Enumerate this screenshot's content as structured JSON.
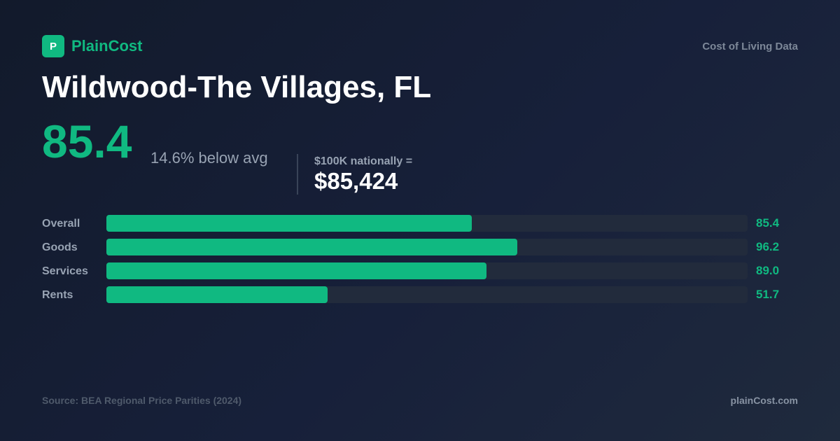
{
  "brand": {
    "logo_letter": "P",
    "name": "PlainCost",
    "tagline": "Cost of Living Data"
  },
  "title": "Wildwood-The Villages, FL",
  "summary": {
    "index": "85.4",
    "delta_text": "14.6% below avg",
    "national_label": "$100K nationally =",
    "national_value": "$85,424"
  },
  "chart_data": {
    "type": "bar",
    "orientation": "horizontal",
    "categories": [
      "Overall",
      "Goods",
      "Services",
      "Rents"
    ],
    "values": [
      85.4,
      96.2,
      89.0,
      51.7
    ],
    "value_labels": [
      "85.4",
      "96.2",
      "89.0",
      "51.7"
    ],
    "xlim": [
      0,
      150
    ],
    "grid": false,
    "colors": {
      "fill": "#10b981",
      "track": "#222b3c"
    }
  },
  "footer": {
    "source": "Source: BEA Regional Price Parities (2024)",
    "site": "plainCost.com"
  }
}
